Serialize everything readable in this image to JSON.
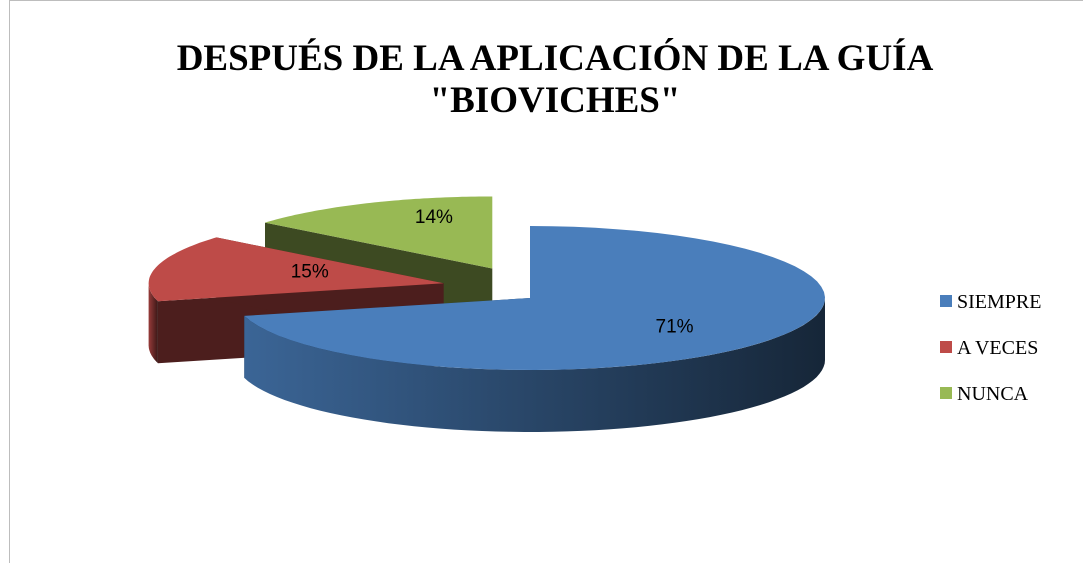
{
  "chart_data": {
    "type": "pie3d",
    "title": [
      "DESPUÉS DE LA  APLICACIÓN DE LA GUÍA",
      "\"BIOVICHES\""
    ],
    "categories": [
      "SIEMPRE",
      "A VECES",
      "NUNCA"
    ],
    "values": [
      71,
      15,
      14
    ],
    "value_labels": [
      "71%",
      "15%",
      "14%"
    ],
    "colors": [
      "#4a7ebb",
      "#be4b48",
      "#98b954"
    ],
    "legend": "right"
  }
}
